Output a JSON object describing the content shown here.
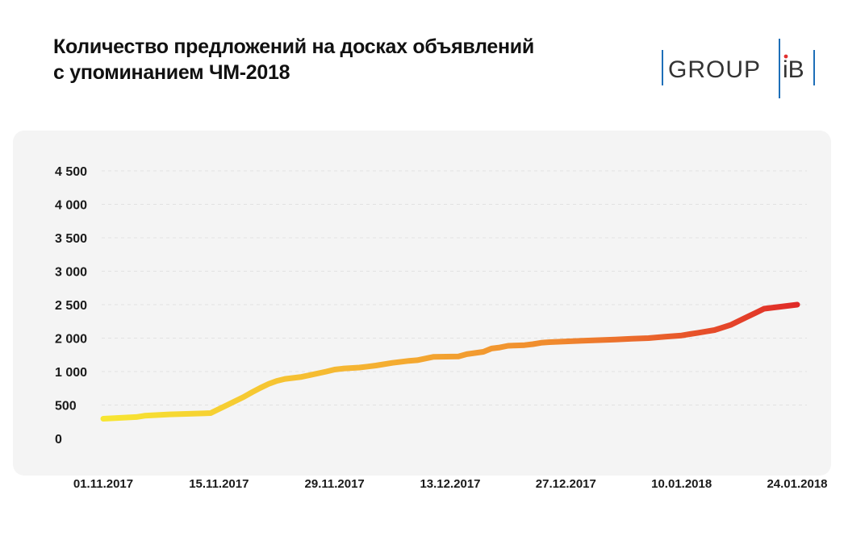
{
  "header": {
    "title_line1": "Количество предложений на досках объявлений",
    "title_line2": "с упоминанием ЧМ-2018"
  },
  "logo": {
    "text_left": "GROUP",
    "text_right": "iB",
    "colors": {
      "bar_blue": "#1e6fb8",
      "text": "#333333",
      "dot_red": "#e03030"
    }
  },
  "chart_data": {
    "type": "line",
    "title": "Количество предложений на досках объявлений с упоминанием ЧМ-2018",
    "y_ticks": [
      "0",
      "500",
      "1 000",
      "2 000",
      "2 500",
      "3 000",
      "3 500",
      "4 000",
      "4 500"
    ],
    "x_ticks": [
      "01.11.2017",
      "15.11.2017",
      "29.11.2017",
      "13.12.2017",
      "27.12.2017",
      "10.01.2018",
      "24.01.2018"
    ],
    "grid": true,
    "gradient": [
      "#f7e632",
      "#f5b632",
      "#f08a2e",
      "#e02a28"
    ],
    "series": [
      {
        "x": [
          "01.11.2017",
          "05.11.2017",
          "06.11.2017",
          "09.11.2017",
          "14.11.2017",
          "15.11.2017",
          "16.11.2017",
          "17.11.2017",
          "18.11.2017",
          "19.11.2017",
          "20.11.2017",
          "21.11.2017",
          "22.11.2017",
          "23.11.2017",
          "25.11.2017",
          "28.11.2017",
          "29.11.2017",
          "30.11.2017",
          "02.12.2017",
          "03.12.2017",
          "04.12.2017",
          "06.12.2017",
          "08.12.2017",
          "09.12.2017",
          "11.12.2017",
          "14.12.2017",
          "15.12.2017",
          "17.12.2017",
          "18.12.2017",
          "19.12.2017",
          "20.12.2017",
          "21.12.2017",
          "22.12.2017",
          "23.12.2017",
          "24.12.2017",
          "25.12.2017",
          "27.12.2017",
          "29.12.2017",
          "31.12.2017",
          "02.01.2018",
          "04.01.2018",
          "06.01.2018",
          "08.01.2018",
          "10.01.2018",
          "11.01.2018",
          "12.01.2018",
          "13.01.2018",
          "14.01.2018",
          "16.01.2018",
          "17.01.2018",
          "18.01.2018",
          "19.01.2018",
          "20.01.2018",
          "24.01.2018"
        ],
        "values": [
          295,
          320,
          340,
          360,
          380,
          440,
          500,
          560,
          620,
          690,
          755,
          815,
          860,
          890,
          920,
          1000,
          1060,
          1090,
          1120,
          1150,
          1180,
          1260,
          1320,
          1340,
          1440,
          1450,
          1520,
          1590,
          1690,
          1720,
          1770,
          1780,
          1790,
          1820,
          1860,
          1880,
          1900,
          1920,
          1940,
          1960,
          1980,
          2000,
          2020,
          2040,
          2060,
          2080,
          2100,
          2120,
          2200,
          2260,
          2320,
          2380,
          2440,
          2500
        ]
      }
    ]
  }
}
